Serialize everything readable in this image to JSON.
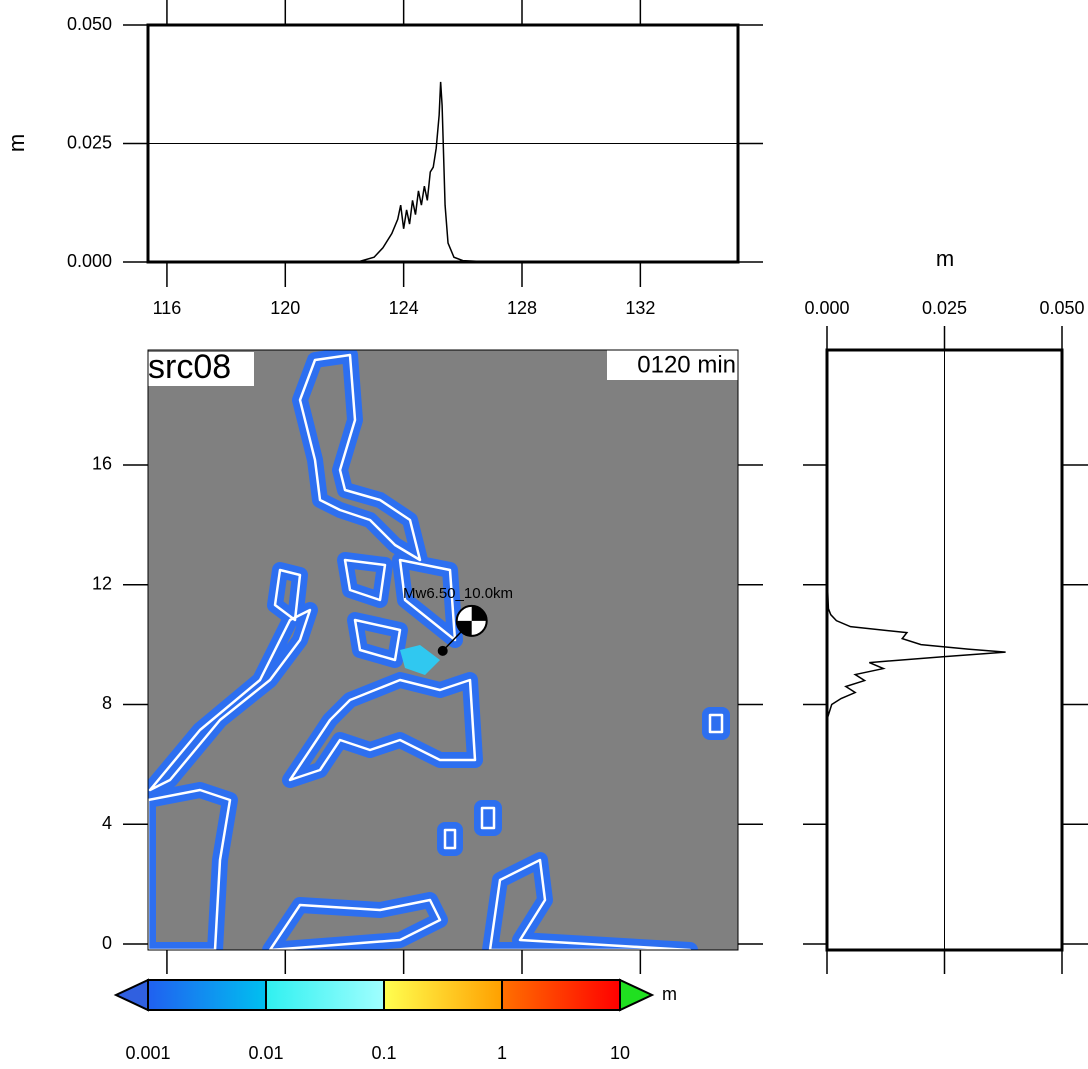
{
  "chart_data": [
    {
      "type": "line",
      "name": "lon-profile",
      "ylabel": "m",
      "x": [
        121,
        122,
        122.5,
        123,
        123.3,
        123.6,
        123.8,
        123.9,
        124.0,
        124.1,
        124.2,
        124.3,
        124.4,
        124.5,
        124.6,
        124.7,
        124.8,
        124.9,
        125.0,
        125.1,
        125.2,
        125.25,
        125.3,
        125.4,
        125.5,
        125.7,
        126,
        127
      ],
      "series": [
        {
          "color": "#000000",
          "values": [
            0,
            0,
            0.0001,
            0.001,
            0.003,
            0.006,
            0.009,
            0.012,
            0.007,
            0.011,
            0.008,
            0.013,
            0.01,
            0.015,
            0.012,
            0.016,
            0.013,
            0.019,
            0.02,
            0.024,
            0.031,
            0.038,
            0.033,
            0.012,
            0.004,
            0.001,
            0.0003,
            0
          ]
        }
      ],
      "xlim": [
        115.36,
        135.3
      ],
      "xticks": [
        116,
        120,
        124,
        128,
        132
      ],
      "ylim": [
        0,
        0.05
      ],
      "yticks": [
        {
          "value": 0,
          "label": "0.000"
        },
        {
          "value": 0.025,
          "label": "0.025"
        },
        {
          "value": 0.05,
          "label": "0.050"
        }
      ],
      "grid": true
    },
    {
      "type": "map",
      "label": "src08",
      "time": "0120 min",
      "annotation": "Mw6.50_10.0km",
      "epicenter": {
        "lon": 125.32,
        "lat": 9.79
      },
      "xlim": [
        115.36,
        135.3
      ],
      "ylim": [
        -0.2,
        19.84
      ],
      "yticks": [
        0,
        4,
        8,
        12,
        16
      ],
      "xticks": [
        116,
        120,
        124,
        128,
        132
      ]
    },
    {
      "type": "hline",
      "name": "lat-profile",
      "xlabel": "m",
      "y": [
        6.5,
        7.5,
        8.0,
        8.2,
        8.4,
        8.6,
        8.8,
        9.0,
        9.2,
        9.4,
        9.6,
        9.75,
        9.85,
        10.0,
        10.2,
        10.4,
        10.6,
        10.8,
        11.0,
        11.2,
        12,
        13.5
      ],
      "series": [
        {
          "color": "#000000",
          "values": [
            0,
            0,
            0.001,
            0.003,
            0.006,
            0.004,
            0.008,
            0.006,
            0.012,
            0.009,
            0.025,
            0.038,
            0.03,
            0.02,
            0.016,
            0.017,
            0.005,
            0.002,
            0.0008,
            0.0003,
            0.0001,
            0
          ]
        }
      ],
      "xlim": [
        0,
        0.05
      ],
      "xticks": [
        {
          "value": 0,
          "label": "0.000"
        },
        {
          "value": 0.025,
          "label": "0.025"
        },
        {
          "value": 0.05,
          "label": "0.050"
        }
      ],
      "ylim": [
        -0.2,
        19.84
      ],
      "yticks": [
        0,
        4,
        8,
        12,
        16
      ],
      "grid": true
    },
    {
      "type": "colorbar",
      "unit": "m",
      "log": true,
      "xlim": [
        0.001,
        10
      ],
      "xticks": [
        0.001,
        0.01,
        0.1,
        1,
        10
      ],
      "colors": [
        [
          "#2060f0",
          "#00c0f0"
        ],
        [
          "#30f0f0",
          "#a0ffff"
        ],
        [
          "#ffff50",
          "#ffa000"
        ],
        [
          "#ff7000",
          "#ff0000"
        ]
      ],
      "under_color": "#3060e0",
      "over_color": "#20e020"
    }
  ]
}
